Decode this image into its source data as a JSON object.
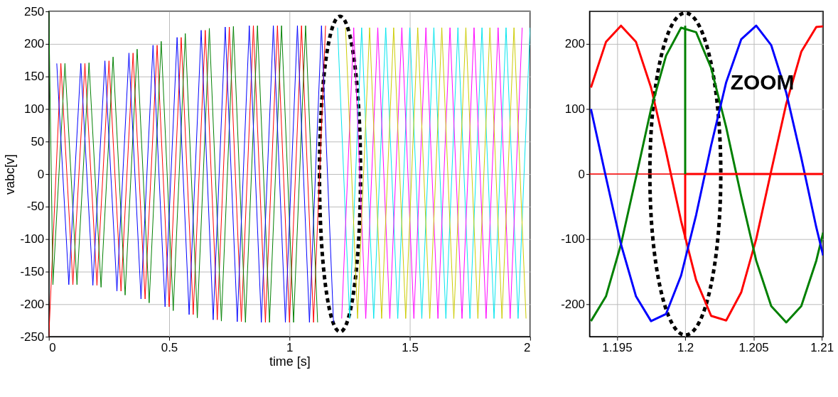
{
  "chart_data": [
    {
      "type": "line",
      "xlabel": "time [s]",
      "ylabel": "vabc[v]",
      "xlim": [
        0,
        2
      ],
      "ylim": [
        -250,
        250
      ],
      "xticks": [
        0,
        0.5,
        1,
        1.5,
        2
      ],
      "yticks": [
        -250,
        -200,
        -150,
        -100,
        -50,
        0,
        50,
        100,
        150,
        200,
        250
      ],
      "grid": true,
      "series": [
        {
          "color": "#ff0000",
          "x": [
            0,
            0.05,
            0.1,
            0.15,
            0.2,
            0.25,
            0.3,
            0.35,
            0.4,
            0.45,
            0.5,
            0.55,
            0.6,
            0.65,
            0.7,
            0.75,
            0.8,
            0.85,
            0.9,
            0.95,
            1.0,
            1.05,
            1.1,
            1.15
          ],
          "values": [
            -250,
            170,
            -170,
            170,
            -171,
            174,
            -180,
            186,
            -192,
            198,
            -204,
            210,
            -216,
            221,
            -224,
            226,
            -227,
            228,
            -228,
            228,
            -228,
            228,
            -228,
            228
          ]
        },
        {
          "color": "#008000",
          "x": [
            0,
            0.017,
            0.067,
            0.117,
            0.167,
            0.217,
            0.267,
            0.317,
            0.367,
            0.417,
            0.467,
            0.517,
            0.567,
            0.617,
            0.667,
            0.717,
            0.767,
            0.817,
            0.867,
            0.917,
            0.967,
            1.017,
            1.067,
            1.117
          ],
          "values": [
            250,
            -170,
            170,
            -170,
            171,
            -174,
            180,
            -186,
            192,
            -198,
            204,
            -210,
            216,
            -221,
            224,
            -226,
            227,
            -228,
            228,
            -228,
            228,
            -228,
            228,
            -228
          ]
        },
        {
          "color": "#0000ff",
          "x": [
            0.033,
            0.083,
            0.133,
            0.183,
            0.233,
            0.283,
            0.333,
            0.383,
            0.433,
            0.483,
            0.533,
            0.583,
            0.633,
            0.683,
            0.733,
            0.783,
            0.833,
            0.883,
            0.933,
            0.983,
            1.033,
            1.083,
            1.133,
            1.183
          ],
          "values": [
            170,
            -170,
            170,
            -171,
            174,
            -180,
            186,
            -192,
            198,
            -204,
            210,
            -216,
            221,
            -224,
            226,
            -227,
            228,
            -228,
            228,
            -228,
            228,
            -228,
            228,
            -228
          ]
        },
        {
          "color": "#00e5ee",
          "x": [
            1.2,
            1.25,
            1.3,
            1.35,
            1.4,
            1.45,
            1.5,
            1.55,
            1.6,
            1.65,
            1.7,
            1.75,
            1.8,
            1.85,
            1.9,
            1.95,
            2.0
          ],
          "values": [
            225,
            -222,
            225,
            -222,
            225,
            -222,
            225,
            -222,
            225,
            -222,
            225,
            -222,
            225,
            -222,
            225,
            -222,
            225
          ]
        },
        {
          "color": "#ff00ff",
          "x": [
            1.217,
            1.267,
            1.317,
            1.367,
            1.417,
            1.467,
            1.517,
            1.567,
            1.617,
            1.667,
            1.717,
            1.767,
            1.817,
            1.867,
            1.917,
            1.967
          ],
          "values": [
            -222,
            225,
            -222,
            225,
            -222,
            225,
            -222,
            225,
            -222,
            225,
            -222,
            225,
            -222,
            225,
            -222,
            225
          ]
        },
        {
          "color": "#cccc00",
          "x": [
            1.233,
            1.283,
            1.333,
            1.383,
            1.433,
            1.483,
            1.533,
            1.583,
            1.633,
            1.683,
            1.733,
            1.783,
            1.833,
            1.883,
            1.933,
            1.983
          ],
          "values": [
            225,
            -222,
            225,
            -222,
            225,
            -222,
            225,
            -222,
            225,
            -222,
            225,
            -222,
            225,
            -222,
            225,
            -222
          ]
        }
      ]
    },
    {
      "type": "line",
      "xlim": [
        1.193,
        1.2101
      ],
      "ylim": [
        -250,
        250
      ],
      "xticks": [
        1.195,
        1.2,
        1.205,
        1.21
      ],
      "yticks": [
        -200,
        -100,
        0,
        100,
        200
      ],
      "grid": true,
      "annotations": [
        "ZOOM"
      ],
      "ref_lines": [
        {
          "axis": "y",
          "value": 0,
          "color": "#ff0000"
        }
      ],
      "series": [
        {
          "color": "#ff0000",
          "x": [
            1.1931,
            1.1942,
            1.1953,
            1.1964,
            1.1975,
            1.1986,
            1.1997,
            1.2008,
            1.2019,
            1.203,
            1.2041,
            1.2052,
            1.2063,
            1.2074,
            1.2085,
            1.2096,
            1.2101
          ],
          "values": [
            133,
            203,
            228,
            203,
            133,
            34,
            -72,
            -163,
            -218,
            -225,
            -182,
            -100,
            5,
            108,
            188,
            226,
            227
          ]
        },
        {
          "color": "#008000",
          "x": [
            1.1931,
            1.1942,
            1.1953,
            1.1964,
            1.1975,
            1.1986,
            1.1997,
            1.2008,
            1.2019,
            1.203,
            1.2041,
            1.2052,
            1.2063,
            1.2074,
            1.2085,
            1.2096,
            1.2101
          ],
          "values": [
            -226,
            -188,
            -108,
            -5,
            100,
            182,
            225,
            218,
            163,
            72,
            -34,
            -133,
            -203,
            -228,
            -203,
            -133,
            -90
          ]
        },
        {
          "color": "#0000ff",
          "x": [
            1.1931,
            1.1942,
            1.1953,
            1.1964,
            1.1975,
            1.1986,
            1.1997,
            1.2008,
            1.2019,
            1.203,
            1.2041,
            1.2052,
            1.2063,
            1.2074,
            1.2085,
            1.2096,
            1.2101
          ],
          "values": [
            100,
            -5,
            -108,
            -188,
            -226,
            -215,
            -156,
            -63,
            44,
            141,
            207,
            228,
            198,
            125,
            25,
            -82,
            -125
          ]
        },
        {
          "color": "#ff0000",
          "x": [
            1.2,
            1.2,
            1.2101
          ],
          "values": [
            -100,
            0,
            0
          ]
        },
        {
          "color": "#008000",
          "x": [
            1.2,
            1.2
          ],
          "values": [
            0,
            228
          ]
        }
      ]
    }
  ]
}
